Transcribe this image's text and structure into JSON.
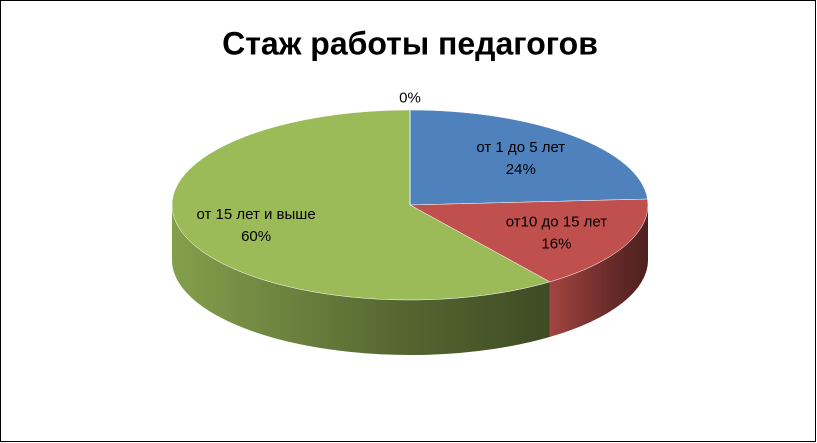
{
  "chart_data": {
    "type": "pie3d",
    "title": "Стаж работы педагогов",
    "categories": [
      "от 1 до 5 лет",
      "от10 до 15 лет",
      "от 15 лет и выше",
      null
    ],
    "values": [
      24,
      16,
      60,
      0
    ],
    "value_labels": [
      "24%",
      "16%",
      "60%",
      "0%"
    ],
    "colors": [
      "#4f81bd",
      "#c0504d",
      "#9bbb59",
      "#8064a2"
    ]
  }
}
